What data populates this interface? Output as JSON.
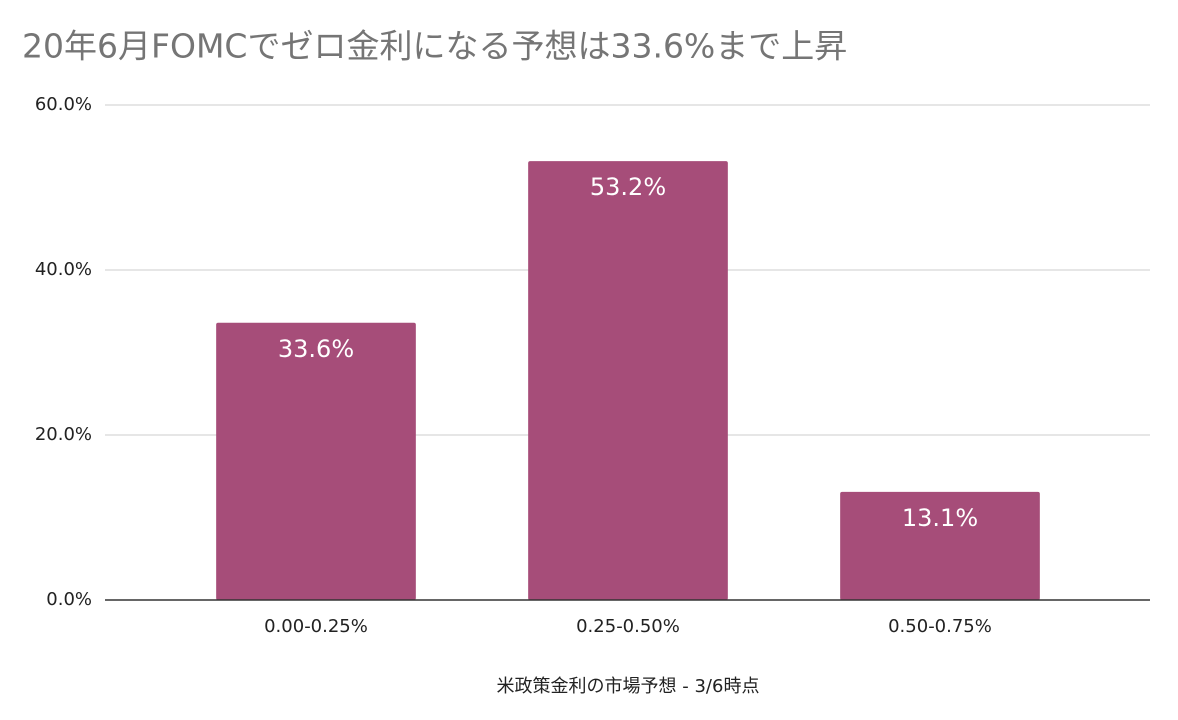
{
  "chart_data": {
    "type": "bar",
    "title": "20年6月FOMCでゼロ金利になる予想は33.6%まで上昇",
    "x_label": "米政策金利の市場予想 - 3/6時点",
    "categories": [
      "0.00-0.25%",
      "0.25-0.50%",
      "0.50-0.75%"
    ],
    "values": [
      33.6,
      53.2,
      13.1
    ],
    "value_labels": [
      "33.6%",
      "53.2%",
      "13.1%"
    ],
    "color": "#a64d79",
    "ylim": [
      0,
      60
    ],
    "yticks": [
      {
        "value": 0,
        "label": "0.0%"
      },
      {
        "value": 20,
        "label": "20.0%"
      },
      {
        "value": 40,
        "label": "40.0%"
      },
      {
        "value": 60,
        "label": "60.0%"
      }
    ],
    "grid": true
  }
}
